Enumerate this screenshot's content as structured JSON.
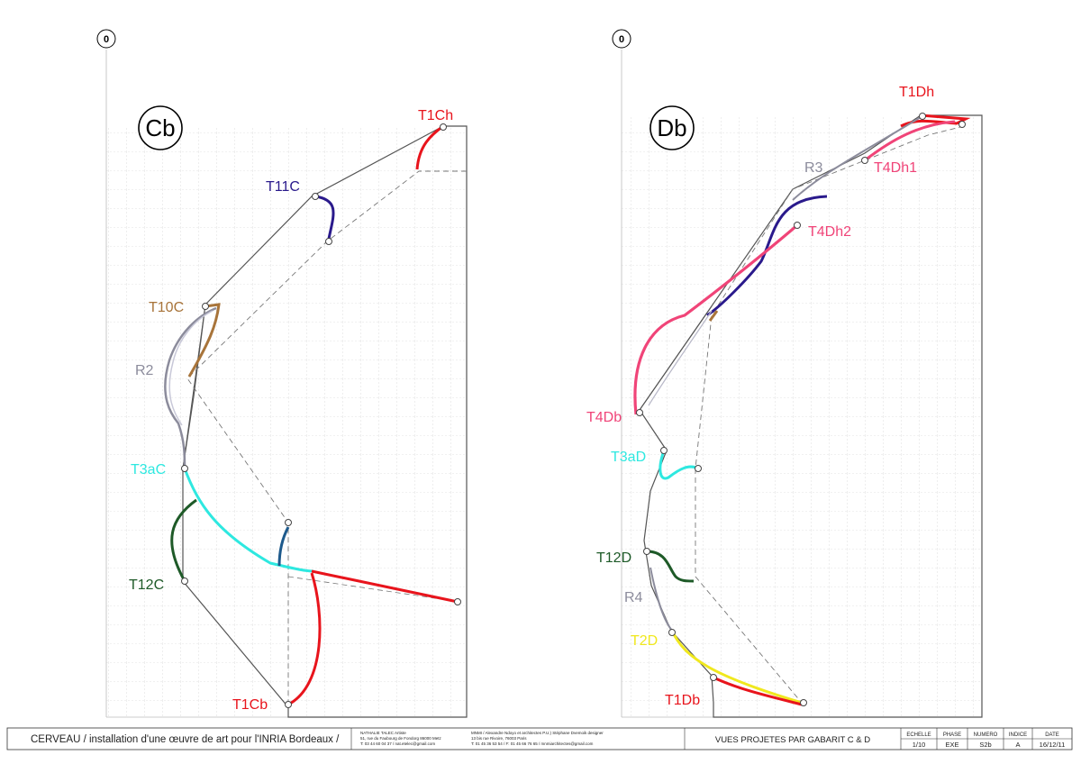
{
  "left_view": {
    "origin_label": "0",
    "badge": "Cb",
    "labels": {
      "T1Ch": "T1Ch",
      "T11C": "T11C",
      "T10C": "T10C",
      "R2": "R2",
      "T3aC": "T3aC",
      "T12C": "T12C",
      "T1Cb": "T1Cb"
    }
  },
  "right_view": {
    "origin_label": "0",
    "badge": "Db",
    "labels": {
      "T1Dh": "T1Dh",
      "R3": "R3",
      "T4Dh1": "T4Dh1",
      "T4Dh2": "T4Dh2",
      "T4Db": "T4Db",
      "T3aD": "T3aD",
      "T12D": "T12D",
      "R4": "R4",
      "T2D": "T2D",
      "T1Db": "T1Db"
    }
  },
  "colors": {
    "red": "#e8141c",
    "navy": "#2a1a8c",
    "brown": "#a8743a",
    "grey": "#8c8c9c",
    "cyan": "#2ee8e0",
    "green": "#1e5a28",
    "blue": "#1e5a8c",
    "pink": "#f04478",
    "yellow": "#f0e81e"
  },
  "title_block": {
    "project": "CERVEAU / installation d'une œuvre de art pour l'INRIA Bordeaux /",
    "artist_line1": "NATHALIE TALEC Artiste",
    "artist_line2": "51, rue du Faubourg de Fondorg 86000 Metz",
    "artist_line3": "T: 03 44 60 04 37 / nat.etelec@gmail.com",
    "arch_line1": "MNMI / Alexandre Ndoyo et architectes P.U.) Stéphane Dvemoik designer",
    "arch_line2": "13 bis rue Rivoire, 76003 Paris",
    "arch_line3": "T: 01 45 36 53 54 / F: 01 45 66 76 65 / mnmiarchitectes@gmail.com",
    "sheet_title": "VUES PROJETES PAR GABARIT C & D",
    "headers": [
      "ECHELLE",
      "PHASE",
      "NUMERO",
      "INDICE",
      "DATE"
    ],
    "values": [
      "1/10",
      "EXE",
      "S2b",
      "A",
      "16/12/11"
    ]
  }
}
